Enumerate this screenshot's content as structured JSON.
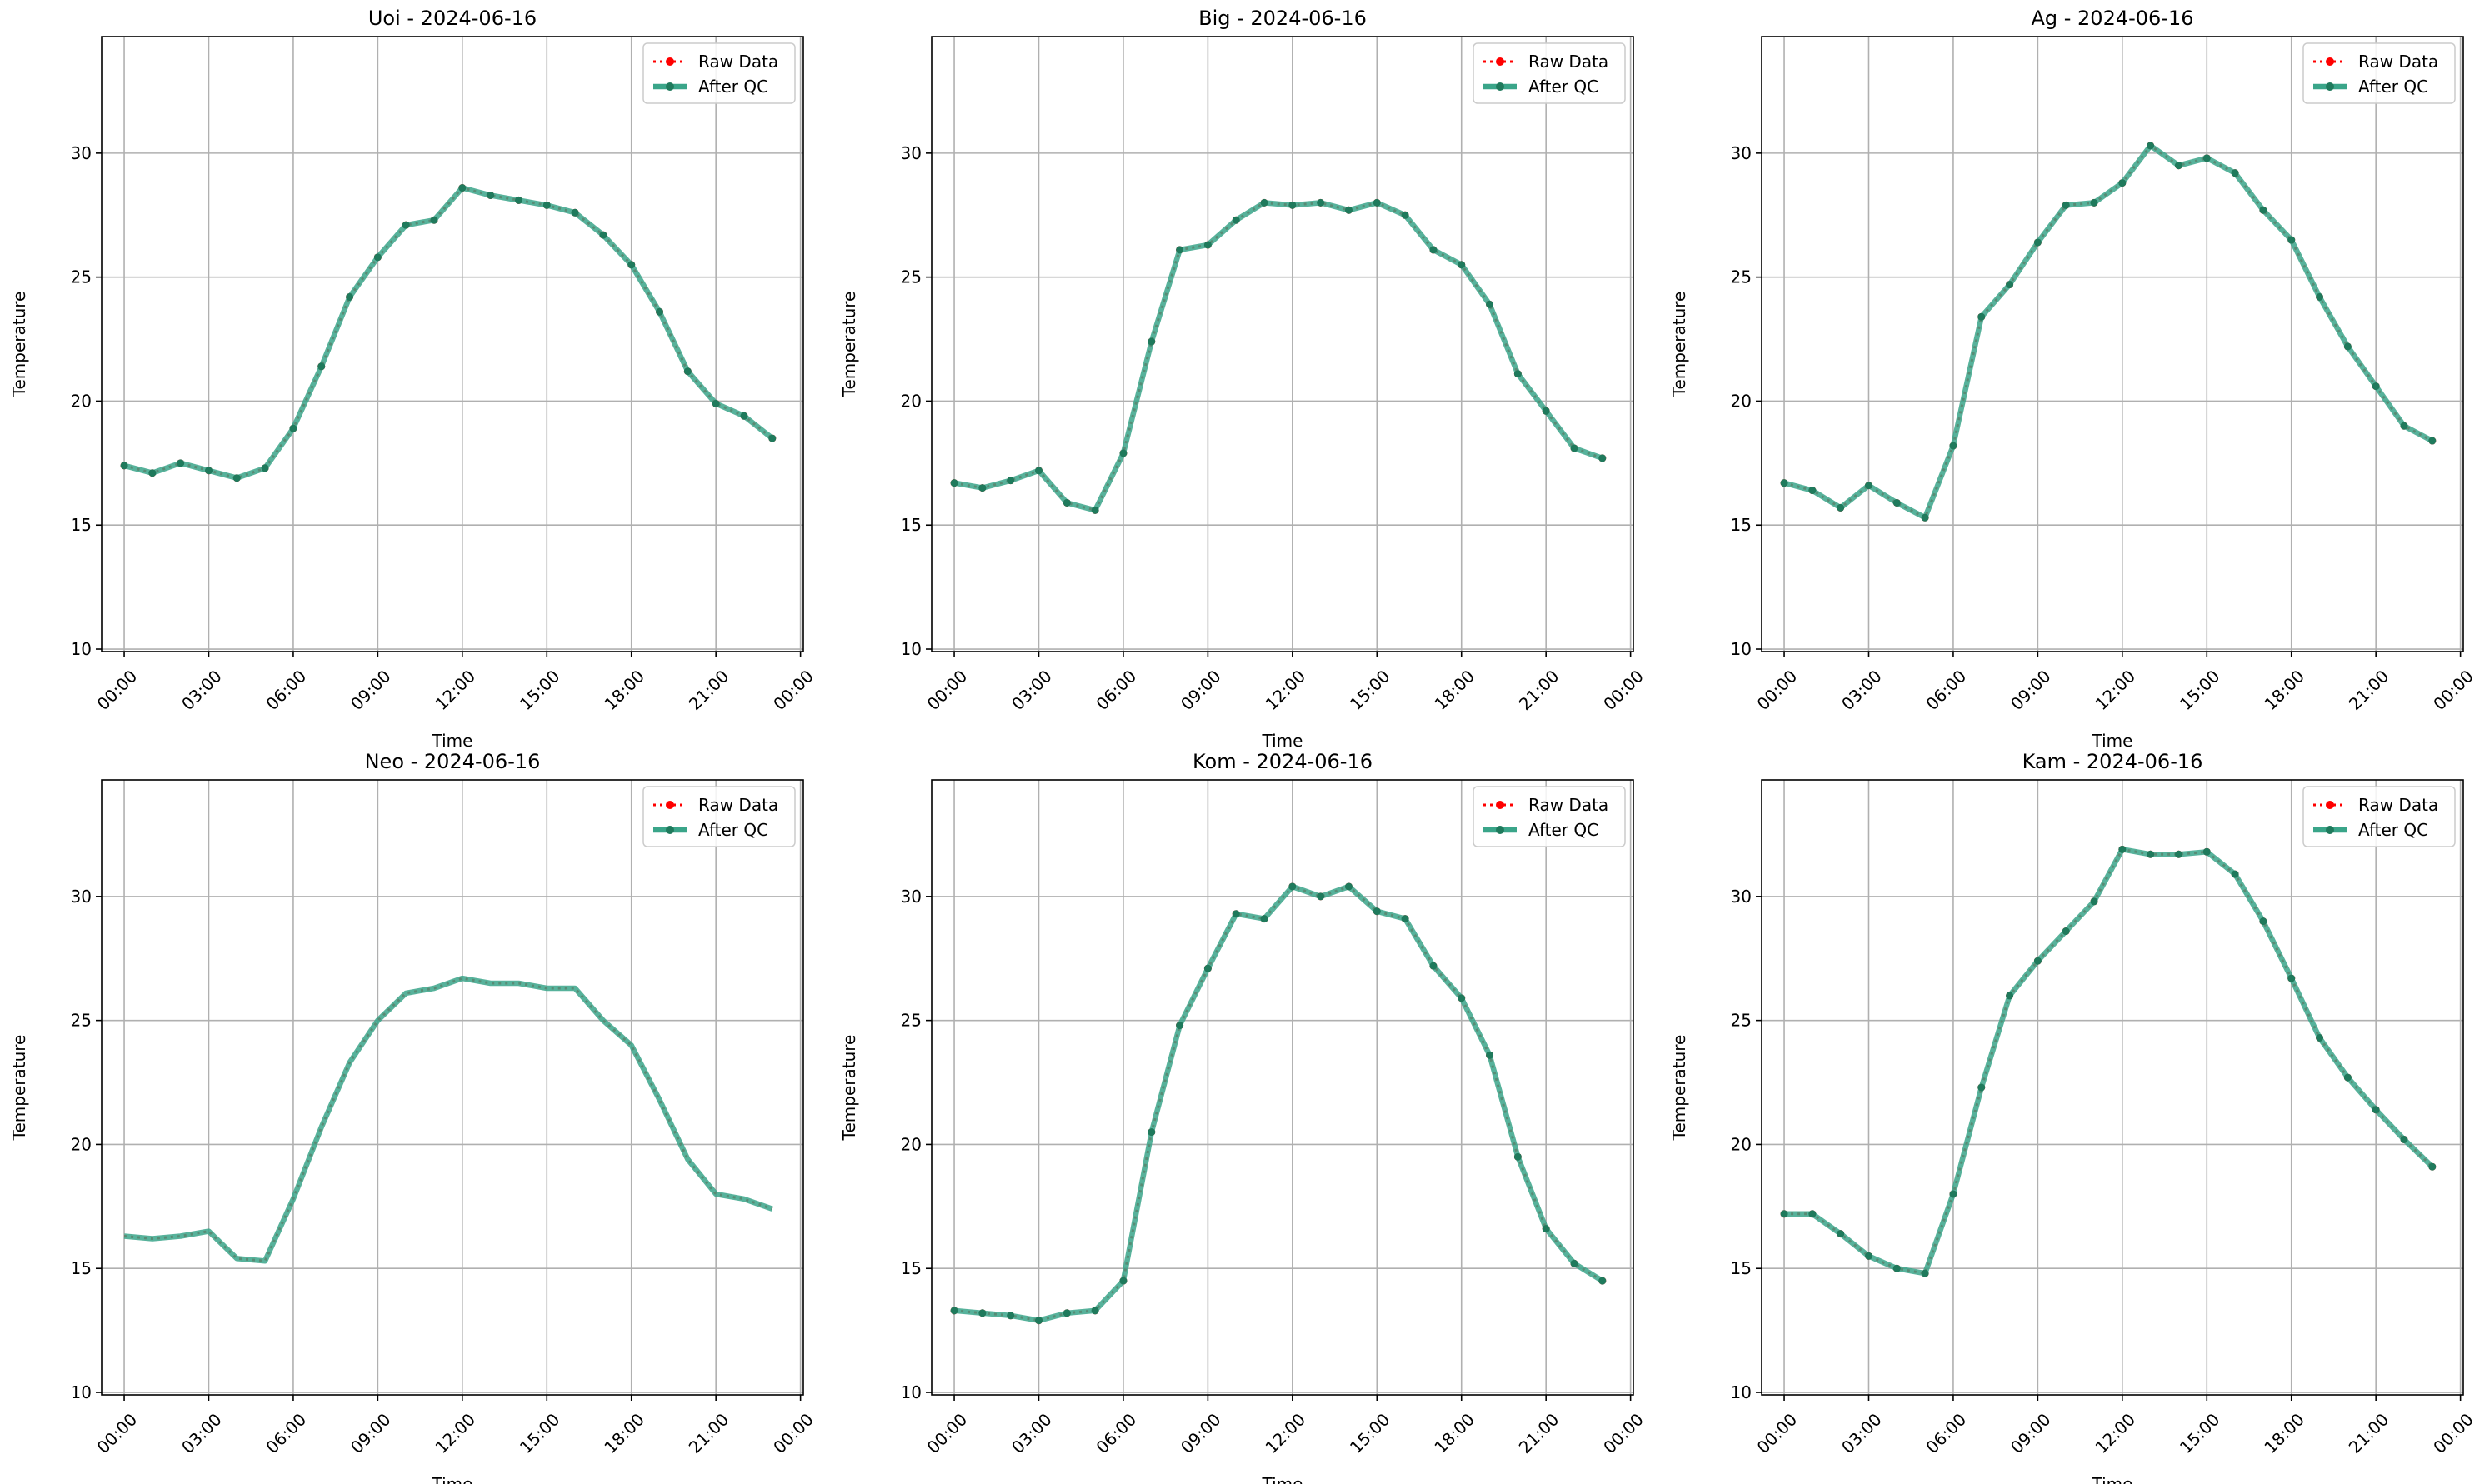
{
  "legend": {
    "raw_label": "Raw Data",
    "qc_label": "After QC",
    "placement": "upper right"
  },
  "colors": {
    "raw": "#ff0000",
    "qc_line": "#3aa589",
    "qc_marker": "#1f7a5c",
    "grid": "#b0b0b0",
    "axes": "#000000"
  },
  "chart_data": [
    {
      "type": "line",
      "title": "Uoi - 2024-06-16",
      "xlabel": "Time",
      "ylabel": "Temperature",
      "x": [
        "00:00",
        "01:00",
        "02:00",
        "03:00",
        "04:00",
        "05:00",
        "06:00",
        "07:00",
        "08:00",
        "09:00",
        "10:00",
        "11:00",
        "12:00",
        "13:00",
        "14:00",
        "15:00",
        "16:00",
        "17:00",
        "18:00",
        "19:00",
        "20:00",
        "21:00",
        "22:00",
        "23:00"
      ],
      "xticks": [
        "00:00",
        "03:00",
        "06:00",
        "09:00",
        "12:00",
        "15:00",
        "18:00",
        "21:00",
        "00:00"
      ],
      "yticks": [
        10,
        15,
        20,
        25,
        30
      ],
      "xlim_hours": [
        -0.8,
        24.1
      ],
      "ylim": [
        9.9,
        34.7
      ],
      "grid": true,
      "series": [
        {
          "name": "Raw Data",
          "values": [
            17.4,
            17.1,
            17.5,
            17.2,
            16.9,
            17.3,
            18.9,
            21.4,
            24.2,
            25.8,
            27.1,
            27.3,
            28.6,
            28.3,
            28.1,
            27.9,
            27.6,
            26.7,
            25.5,
            23.6,
            21.2,
            19.9,
            19.4,
            18.5
          ]
        },
        {
          "name": "After QC",
          "values": [
            17.4,
            17.1,
            17.5,
            17.2,
            16.9,
            17.3,
            18.9,
            21.4,
            24.2,
            25.8,
            27.1,
            27.3,
            28.6,
            28.3,
            28.1,
            27.9,
            27.6,
            26.7,
            25.5,
            23.6,
            21.2,
            19.9,
            19.4,
            18.5
          ]
        }
      ]
    },
    {
      "type": "line",
      "title": "Big - 2024-06-16",
      "xlabel": "Time",
      "ylabel": "Temperature",
      "x": [
        "00:00",
        "01:00",
        "02:00",
        "03:00",
        "04:00",
        "05:00",
        "06:00",
        "07:00",
        "08:00",
        "09:00",
        "10:00",
        "11:00",
        "12:00",
        "13:00",
        "14:00",
        "15:00",
        "16:00",
        "17:00",
        "18:00",
        "19:00",
        "20:00",
        "21:00",
        "22:00",
        "23:00"
      ],
      "xticks": [
        "00:00",
        "03:00",
        "06:00",
        "09:00",
        "12:00",
        "15:00",
        "18:00",
        "21:00",
        "00:00"
      ],
      "yticks": [
        10,
        15,
        20,
        25,
        30
      ],
      "xlim_hours": [
        -0.8,
        24.1
      ],
      "ylim": [
        9.9,
        34.7
      ],
      "grid": true,
      "series": [
        {
          "name": "Raw Data",
          "values": [
            16.7,
            16.5,
            16.8,
            17.2,
            15.9,
            15.6,
            17.9,
            22.4,
            26.1,
            26.3,
            27.3,
            28.0,
            27.9,
            28.0,
            27.7,
            28.0,
            27.5,
            26.1,
            25.5,
            23.9,
            21.1,
            19.6,
            18.1,
            17.7
          ]
        },
        {
          "name": "After QC",
          "values": [
            16.7,
            16.5,
            16.8,
            17.2,
            15.9,
            15.6,
            17.9,
            22.4,
            26.1,
            26.3,
            27.3,
            28.0,
            27.9,
            28.0,
            27.7,
            28.0,
            27.5,
            26.1,
            25.5,
            23.9,
            21.1,
            19.6,
            18.1,
            17.7
          ]
        }
      ]
    },
    {
      "type": "line",
      "title": "Ag - 2024-06-16",
      "xlabel": "Time",
      "ylabel": "Temperature",
      "x": [
        "00:00",
        "01:00",
        "02:00",
        "03:00",
        "04:00",
        "05:00",
        "06:00",
        "07:00",
        "08:00",
        "09:00",
        "10:00",
        "11:00",
        "12:00",
        "13:00",
        "14:00",
        "15:00",
        "16:00",
        "17:00",
        "18:00",
        "19:00",
        "20:00",
        "21:00",
        "22:00",
        "23:00"
      ],
      "xticks": [
        "00:00",
        "03:00",
        "06:00",
        "09:00",
        "12:00",
        "15:00",
        "18:00",
        "21:00",
        "00:00"
      ],
      "yticks": [
        10,
        15,
        20,
        25,
        30
      ],
      "xlim_hours": [
        -0.8,
        24.1
      ],
      "ylim": [
        9.9,
        34.7
      ],
      "grid": true,
      "series": [
        {
          "name": "Raw Data",
          "values": [
            16.7,
            16.4,
            15.7,
            16.6,
            15.9,
            15.3,
            18.2,
            23.4,
            24.7,
            26.4,
            27.9,
            28.0,
            28.8,
            30.3,
            29.5,
            29.8,
            29.2,
            27.7,
            26.5,
            24.2,
            22.2,
            20.6,
            19.0,
            18.4
          ]
        },
        {
          "name": "After QC",
          "values": [
            16.7,
            16.4,
            15.7,
            16.6,
            15.9,
            15.3,
            18.2,
            23.4,
            24.7,
            26.4,
            27.9,
            28.0,
            28.8,
            30.3,
            29.5,
            29.8,
            29.2,
            27.7,
            26.5,
            24.2,
            22.2,
            20.6,
            19.0,
            18.4
          ]
        }
      ]
    },
    {
      "type": "line",
      "title": "Neo - 2024-06-16",
      "xlabel": "Time",
      "ylabel": "Temperature",
      "x": [
        "00:00",
        "01:00",
        "02:00",
        "03:00",
        "04:00",
        "05:00",
        "06:00",
        "07:00",
        "08:00",
        "09:00",
        "10:00",
        "11:00",
        "12:00",
        "13:00",
        "14:00",
        "15:00",
        "16:00",
        "17:00",
        "18:00",
        "19:00",
        "20:00",
        "21:00",
        "22:00",
        "23:00"
      ],
      "xticks": [
        "00:00",
        "03:00",
        "06:00",
        "09:00",
        "12:00",
        "15:00",
        "18:00",
        "21:00",
        "00:00"
      ],
      "yticks": [
        10,
        15,
        20,
        25,
        30
      ],
      "xlim_hours": [
        -0.8,
        24.1
      ],
      "ylim": [
        9.9,
        34.7
      ],
      "grid": true,
      "series": [
        {
          "name": "Raw Data",
          "values": [
            16.3,
            16.2,
            16.3,
            16.5,
            15.4,
            15.3,
            17.8,
            20.7,
            23.3,
            25.0,
            26.1,
            26.3,
            26.7,
            26.5,
            26.5,
            26.3,
            26.3,
            25.0,
            24.0,
            21.8,
            19.4,
            18.0,
            17.8,
            17.4
          ]
        },
        {
          "name": "After QC",
          "values": [
            16.3,
            16.2,
            16.3,
            16.5,
            15.4,
            15.3,
            17.8,
            20.7,
            23.3,
            25.0,
            26.1,
            26.3,
            26.7,
            26.5,
            26.5,
            26.3,
            26.3,
            25.0,
            24.0,
            21.8,
            19.4,
            18.0,
            17.8,
            17.4
          ]
        }
      ]
    },
    {
      "type": "line",
      "title": "Kom - 2024-06-16",
      "xlabel": "Time",
      "ylabel": "Temperature",
      "x": [
        "00:00",
        "01:00",
        "02:00",
        "03:00",
        "04:00",
        "05:00",
        "06:00",
        "07:00",
        "08:00",
        "09:00",
        "10:00",
        "11:00",
        "12:00",
        "13:00",
        "14:00",
        "15:00",
        "16:00",
        "17:00",
        "18:00",
        "19:00",
        "20:00",
        "21:00",
        "22:00",
        "23:00"
      ],
      "xticks": [
        "00:00",
        "03:00",
        "06:00",
        "09:00",
        "12:00",
        "15:00",
        "18:00",
        "21:00",
        "00:00"
      ],
      "yticks": [
        10,
        15,
        20,
        25,
        30
      ],
      "xlim_hours": [
        -0.8,
        24.1
      ],
      "ylim": [
        9.9,
        34.7
      ],
      "grid": true,
      "series": [
        {
          "name": "Raw Data",
          "values": [
            13.3,
            13.2,
            13.1,
            12.9,
            13.2,
            13.3,
            14.5,
            20.5,
            24.8,
            27.1,
            29.3,
            29.1,
            30.4,
            30.0,
            30.4,
            29.4,
            29.1,
            27.2,
            25.9,
            23.6,
            19.5,
            16.6,
            15.2,
            14.5
          ]
        },
        {
          "name": "After QC",
          "values": [
            13.3,
            13.2,
            13.1,
            12.9,
            13.2,
            13.3,
            14.5,
            20.5,
            24.8,
            27.1,
            29.3,
            29.1,
            30.4,
            30.0,
            30.4,
            29.4,
            29.1,
            27.2,
            25.9,
            23.6,
            19.5,
            16.6,
            15.2,
            14.5
          ]
        }
      ]
    },
    {
      "type": "line",
      "title": "Kam - 2024-06-16",
      "xlabel": "Time",
      "ylabel": "Temperature",
      "x": [
        "00:00",
        "01:00",
        "02:00",
        "03:00",
        "04:00",
        "05:00",
        "06:00",
        "07:00",
        "08:00",
        "09:00",
        "10:00",
        "11:00",
        "12:00",
        "13:00",
        "14:00",
        "15:00",
        "16:00",
        "17:00",
        "18:00",
        "19:00",
        "20:00",
        "21:00",
        "22:00",
        "23:00"
      ],
      "xticks": [
        "00:00",
        "03:00",
        "06:00",
        "09:00",
        "12:00",
        "15:00",
        "18:00",
        "21:00",
        "00:00"
      ],
      "yticks": [
        10,
        15,
        20,
        25,
        30
      ],
      "xlim_hours": [
        -0.8,
        24.1
      ],
      "ylim": [
        9.9,
        34.7
      ],
      "grid": true,
      "series": [
        {
          "name": "Raw Data",
          "values": [
            17.2,
            17.2,
            16.4,
            15.5,
            15.0,
            14.8,
            18.0,
            22.3,
            26.0,
            27.4,
            28.6,
            29.8,
            31.9,
            31.7,
            31.7,
            31.8,
            30.9,
            29.0,
            26.7,
            24.3,
            22.7,
            21.4,
            20.2,
            19.1
          ]
        },
        {
          "name": "After QC",
          "values": [
            17.2,
            17.2,
            16.4,
            15.5,
            15.0,
            14.8,
            18.0,
            22.3,
            26.0,
            27.4,
            28.6,
            29.8,
            31.9,
            31.7,
            31.7,
            31.8,
            30.9,
            29.0,
            26.7,
            24.3,
            22.7,
            21.4,
            20.2,
            19.1
          ]
        }
      ]
    }
  ]
}
